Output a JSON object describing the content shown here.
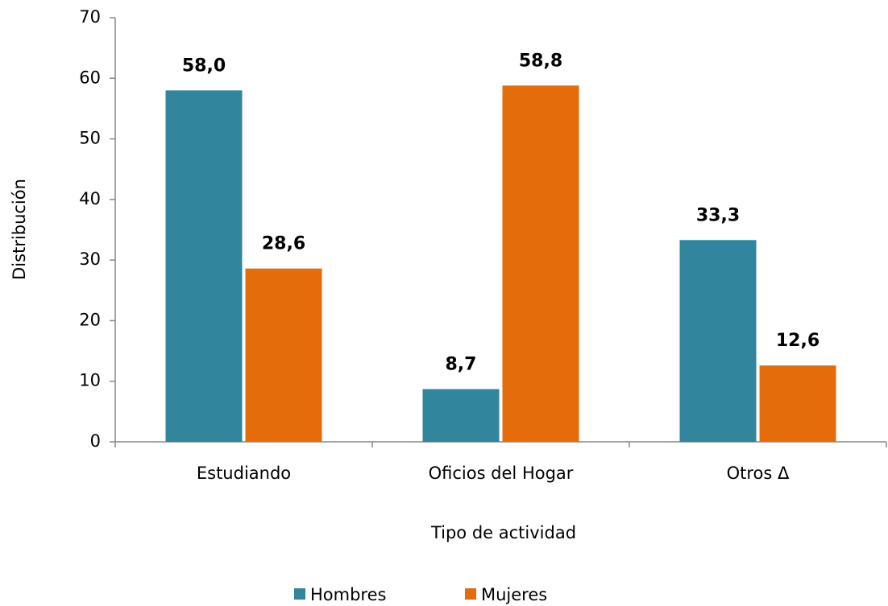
{
  "chart_data": {
    "type": "bar",
    "x_label": "Tipo de actividad",
    "y_label": "Distribución",
    "categories": [
      "Estudiando",
      "Oficios del Hogar",
      "Otros Δ"
    ],
    "series": [
      {
        "name": "Hombres",
        "color": "#31859c",
        "label_color": "#296070",
        "values": [
          58.0,
          8.7,
          33.3
        ],
        "value_labels": [
          "58,0",
          "8,7",
          "33,3"
        ]
      },
      {
        "name": "Mujeres",
        "color": "#e46c0a",
        "label_color": "#e46c0a",
        "values": [
          28.6,
          58.8,
          12.6
        ],
        "value_labels": [
          "28,6",
          "58,8",
          "12,6"
        ]
      }
    ],
    "ylim": [
      0,
      70
    ],
    "yticks": [
      0,
      10,
      20,
      30,
      40,
      50,
      60,
      70
    ],
    "grid": false,
    "legend": "bottom"
  }
}
